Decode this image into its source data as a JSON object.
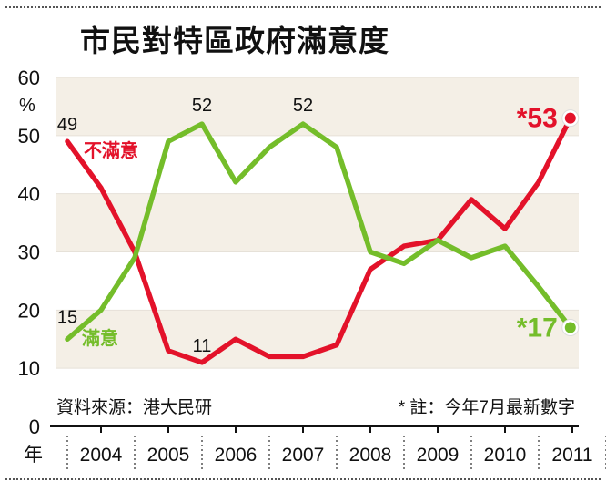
{
  "title": "市民對特區政府滿意度",
  "chart_data": {
    "type": "line",
    "title": "市民對特區政府滿意度",
    "ylabel": "%",
    "xlabel": "年",
    "ylim": [
      0,
      60
    ],
    "y_ticks": [
      "0",
      "10",
      "20",
      "30",
      "40",
      "50",
      "60"
    ],
    "x_ticks": [
      "2004",
      "2005",
      "2006",
      "2007",
      "2008",
      "2009",
      "2010",
      "2011"
    ],
    "x_tick_values": [
      2004,
      2005,
      2006,
      2007,
      2008,
      2009,
      2010,
      2011
    ],
    "series": [
      {
        "name": "不滿意",
        "color": "#e3122a",
        "x": [
          2003.5,
          2004.0,
          2004.5,
          2005.0,
          2005.5,
          2006.0,
          2006.5,
          2007.0,
          2007.5,
          2008.0,
          2008.5,
          2009.0,
          2009.5,
          2010.0,
          2010.5,
          2010.97
        ],
        "values": [
          49,
          41,
          30,
          13,
          11,
          15,
          12,
          12,
          14,
          27,
          31,
          32,
          39,
          34,
          42,
          53
        ]
      },
      {
        "name": "滿意",
        "color": "#74bd2a",
        "x": [
          2003.5,
          2004.0,
          2004.5,
          2005.0,
          2005.5,
          2006.0,
          2006.5,
          2007.0,
          2007.5,
          2008.0,
          2008.5,
          2009.0,
          2009.5,
          2010.0,
          2010.5,
          2010.97
        ],
        "values": [
          15,
          20,
          29,
          49,
          52,
          42,
          48,
          52,
          48,
          30,
          28,
          32,
          29,
          31,
          24,
          17
        ]
      }
    ],
    "data_labels": [
      {
        "text": "49",
        "series": 0,
        "index": 0
      },
      {
        "text": "11",
        "series": 0,
        "index": 4
      },
      {
        "text": "15",
        "series": 1,
        "index": 0
      },
      {
        "text": "52",
        "series": 1,
        "index": 4
      },
      {
        "text": "52",
        "series": 1,
        "index": 7
      }
    ],
    "latest_labels": [
      {
        "text": "*53",
        "series": 0
      },
      {
        "text": "*17",
        "series": 1
      }
    ],
    "source": "資料來源：港大民研",
    "note": "* 註：今年7月最新數字"
  }
}
